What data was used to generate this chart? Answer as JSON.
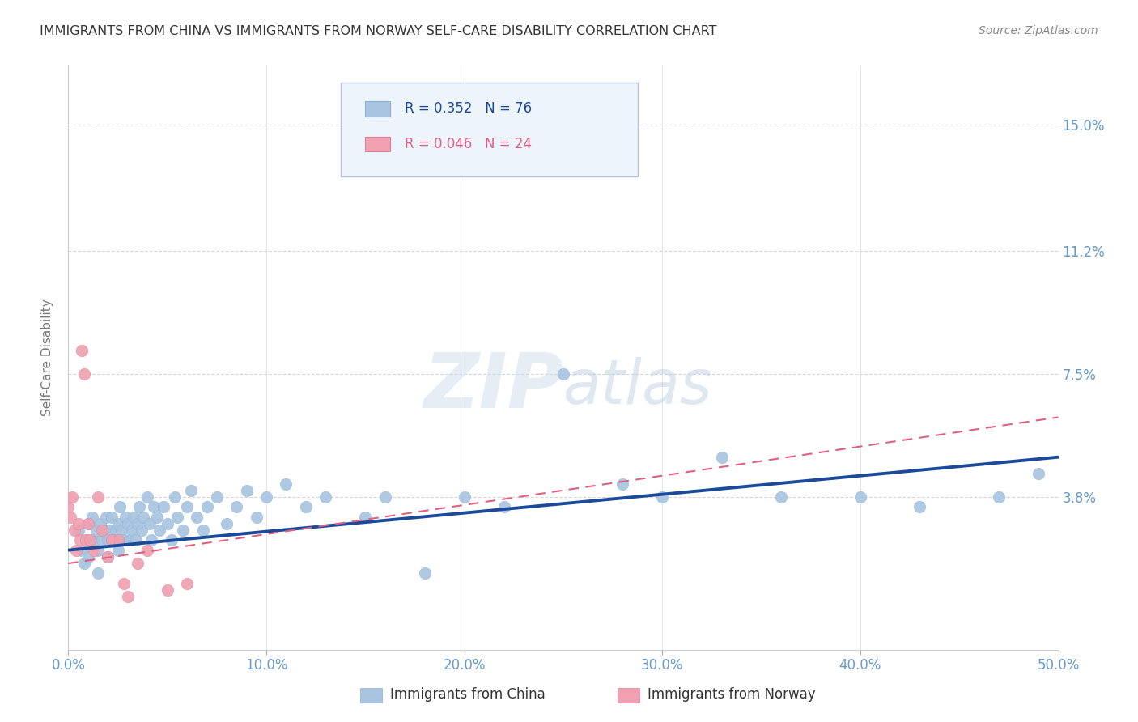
{
  "title": "IMMIGRANTS FROM CHINA VS IMMIGRANTS FROM NORWAY SELF-CARE DISABILITY CORRELATION CHART",
  "source": "Source: ZipAtlas.com",
  "ylabel": "Self-Care Disability",
  "watermark": "ZIPatlas",
  "xlim": [
    0.0,
    0.5
  ],
  "ylim": [
    -0.008,
    0.168
  ],
  "yticks": [
    0.038,
    0.075,
    0.112,
    0.15
  ],
  "ytick_labels": [
    "3.8%",
    "7.5%",
    "11.2%",
    "15.0%"
  ],
  "xticks": [
    0.0,
    0.1,
    0.2,
    0.3,
    0.4,
    0.5
  ],
  "xtick_labels": [
    "0.0%",
    "10.0%",
    "20.0%",
    "30.0%",
    "40.0%",
    "50.0%"
  ],
  "china_R": 0.352,
  "china_N": 76,
  "norway_R": 0.046,
  "norway_N": 24,
  "china_color": "#a8c4e0",
  "norway_color": "#f0a0b0",
  "china_line_color": "#1a4a99",
  "norway_line_color": "#e06080",
  "background_color": "#ffffff",
  "axis_label_color": "#6699cc",
  "grid_color": "#d8d8d8",
  "china_x": [
    0.005,
    0.007,
    0.008,
    0.009,
    0.01,
    0.01,
    0.012,
    0.013,
    0.014,
    0.015,
    0.015,
    0.016,
    0.017,
    0.018,
    0.019,
    0.02,
    0.02,
    0.021,
    0.022,
    0.023,
    0.024,
    0.025,
    0.025,
    0.026,
    0.027,
    0.028,
    0.029,
    0.03,
    0.031,
    0.032,
    0.033,
    0.034,
    0.035,
    0.036,
    0.037,
    0.038,
    0.04,
    0.041,
    0.042,
    0.043,
    0.045,
    0.046,
    0.048,
    0.05,
    0.052,
    0.054,
    0.055,
    0.058,
    0.06,
    0.062,
    0.065,
    0.068,
    0.07,
    0.075,
    0.08,
    0.085,
    0.09,
    0.095,
    0.1,
    0.11,
    0.12,
    0.13,
    0.15,
    0.16,
    0.18,
    0.2,
    0.22,
    0.25,
    0.28,
    0.3,
    0.33,
    0.36,
    0.4,
    0.43,
    0.47,
    0.49
  ],
  "china_y": [
    0.028,
    0.022,
    0.018,
    0.025,
    0.03,
    0.02,
    0.032,
    0.025,
    0.028,
    0.022,
    0.015,
    0.03,
    0.025,
    0.028,
    0.032,
    0.025,
    0.02,
    0.028,
    0.032,
    0.025,
    0.028,
    0.03,
    0.022,
    0.035,
    0.028,
    0.025,
    0.032,
    0.03,
    0.025,
    0.028,
    0.032,
    0.025,
    0.03,
    0.035,
    0.028,
    0.032,
    0.038,
    0.03,
    0.025,
    0.035,
    0.032,
    0.028,
    0.035,
    0.03,
    0.025,
    0.038,
    0.032,
    0.028,
    0.035,
    0.04,
    0.032,
    0.028,
    0.035,
    0.038,
    0.03,
    0.035,
    0.04,
    0.032,
    0.038,
    0.042,
    0.035,
    0.038,
    0.032,
    0.038,
    0.015,
    0.038,
    0.035,
    0.075,
    0.042,
    0.038,
    0.05,
    0.038,
    0.038,
    0.035,
    0.038,
    0.045
  ],
  "norway_x": [
    0.0,
    0.001,
    0.002,
    0.003,
    0.004,
    0.005,
    0.006,
    0.007,
    0.008,
    0.009,
    0.01,
    0.011,
    0.013,
    0.015,
    0.017,
    0.02,
    0.022,
    0.025,
    0.028,
    0.03,
    0.035,
    0.04,
    0.05,
    0.06
  ],
  "norway_y": [
    0.035,
    0.032,
    0.038,
    0.028,
    0.022,
    0.03,
    0.025,
    0.082,
    0.075,
    0.025,
    0.03,
    0.025,
    0.022,
    0.038,
    0.028,
    0.02,
    0.025,
    0.025,
    0.012,
    0.008,
    0.018,
    0.022,
    0.01,
    0.012
  ]
}
